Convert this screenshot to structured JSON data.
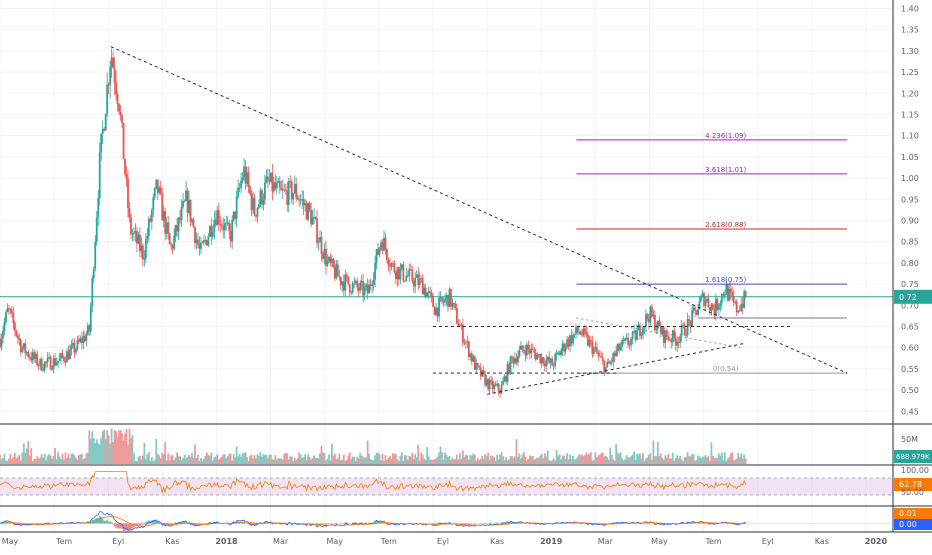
{
  "chart_data": {
    "type": "candlestick",
    "price_axis": {
      "ylim": [
        0.42,
        1.42
      ],
      "ticks": [
        "1.40",
        "1.35",
        "1.30",
        "1.25",
        "1.20",
        "1.15",
        "1.10",
        "1.05",
        "1.00",
        "0.95",
        "0.90",
        "0.85",
        "0.80",
        "0.75",
        "0.70",
        "0.65",
        "0.60",
        "0.55",
        "0.50",
        "0.45"
      ],
      "tick_values": [
        1.4,
        1.35,
        1.3,
        1.25,
        1.2,
        1.15,
        1.1,
        1.05,
        1.0,
        0.95,
        0.9,
        0.85,
        0.8,
        0.75,
        0.7,
        0.65,
        0.6,
        0.55,
        0.5,
        0.45
      ]
    },
    "time_axis": {
      "labels": [
        "May",
        "Tem",
        "Eyl",
        "Kas",
        "2018",
        "Mar",
        "May",
        "Tem",
        "Eyl",
        "Kas",
        "2019",
        "Mar",
        "May",
        "Tem",
        "Eyl",
        "Kas",
        "2020"
      ],
      "label_months": [
        0,
        2,
        4,
        6,
        8,
        10,
        12,
        14,
        16,
        18,
        20,
        22,
        24,
        26,
        28,
        30,
        32
      ],
      "xlim_months": [
        0,
        33
      ]
    },
    "last_price": {
      "label": "0.72",
      "value": 0.72,
      "color": "#26a69a"
    },
    "price_anchors": [
      [
        0,
        0.62
      ],
      [
        0.3,
        0.69
      ],
      [
        0.8,
        0.6
      ],
      [
        1.5,
        0.56
      ],
      [
        2.2,
        0.57
      ],
      [
        2.8,
        0.6
      ],
      [
        3.3,
        0.64
      ],
      [
        3.7,
        1.05
      ],
      [
        4.1,
        1.3
      ],
      [
        4.4,
        1.18
      ],
      [
        4.8,
        0.88
      ],
      [
        5.3,
        0.82
      ],
      [
        5.8,
        0.98
      ],
      [
        6.3,
        0.83
      ],
      [
        6.9,
        0.95
      ],
      [
        7.4,
        0.82
      ],
      [
        8.0,
        0.92
      ],
      [
        8.5,
        0.86
      ],
      [
        9.0,
        1.02
      ],
      [
        9.4,
        0.92
      ],
      [
        9.9,
        0.99
      ],
      [
        10.4,
        0.96
      ],
      [
        10.9,
        0.97
      ],
      [
        11.5,
        0.91
      ],
      [
        12.1,
        0.8
      ],
      [
        12.6,
        0.76
      ],
      [
        13.2,
        0.74
      ],
      [
        13.6,
        0.73
      ],
      [
        14.1,
        0.86
      ],
      [
        14.5,
        0.79
      ],
      [
        15.0,
        0.77
      ],
      [
        15.6,
        0.75
      ],
      [
        16.1,
        0.69
      ],
      [
        16.6,
        0.72
      ],
      [
        17.1,
        0.63
      ],
      [
        17.6,
        0.55
      ],
      [
        18.1,
        0.51
      ],
      [
        18.5,
        0.5
      ],
      [
        18.9,
        0.57
      ],
      [
        19.4,
        0.6
      ],
      [
        19.9,
        0.58
      ],
      [
        20.4,
        0.56
      ],
      [
        20.9,
        0.61
      ],
      [
        21.4,
        0.64
      ],
      [
        21.9,
        0.6
      ],
      [
        22.4,
        0.55
      ],
      [
        22.9,
        0.6
      ],
      [
        23.4,
        0.62
      ],
      [
        24.0,
        0.68
      ],
      [
        24.5,
        0.63
      ],
      [
        25.0,
        0.62
      ],
      [
        25.5,
        0.66
      ],
      [
        26.0,
        0.72
      ],
      [
        26.4,
        0.69
      ],
      [
        26.8,
        0.74
      ],
      [
        27.2,
        0.69
      ],
      [
        27.6,
        0.72
      ]
    ],
    "trendlines": [
      {
        "name": "downtrend",
        "from": [
          4.1,
          1.31
        ],
        "to": [
          31.3,
          0.54
        ],
        "style": "dashed",
        "color": "#2a2e39"
      },
      {
        "name": "support",
        "from": [
          18.0,
          0.49
        ],
        "to": [
          27.5,
          0.61
        ],
        "style": "dashed",
        "color": "#2a2e39"
      },
      {
        "name": "resistance-dashed",
        "from": [
          16.0,
          0.65
        ],
        "to": [
          29.2,
          0.65
        ],
        "style": "dashed",
        "color": "#2a2e39"
      },
      {
        "name": "support-dashed",
        "from": [
          16.0,
          0.54
        ],
        "to": [
          22.8,
          0.54
        ],
        "style": "dashed",
        "color": "#2a2e39"
      },
      {
        "name": "resistance-solid",
        "from": [
          25.8,
          0.67
        ],
        "to": [
          31.3,
          0.67
        ],
        "style": "solid",
        "color": "#787b86"
      },
      {
        "name": "channel-top",
        "from": [
          21.3,
          0.67
        ],
        "to": [
          27.4,
          0.6
        ],
        "style": "dotted",
        "color": "#9598a1"
      }
    ],
    "fib_levels": [
      {
        "label": "4.236(1.09)",
        "value": 1.09,
        "color": "#9c27b0"
      },
      {
        "label": "3.618(1.01)",
        "value": 1.01,
        "color": "#9c27b0"
      },
      {
        "label": "2.618(0.88)",
        "value": 0.88,
        "color": "#c62828"
      },
      {
        "label": "1.618(0.75)",
        "value": 0.75,
        "color": "#3f51b5"
      },
      {
        "label": "0(0.54)",
        "value": 0.54,
        "color": "#9598a1"
      }
    ],
    "fib_x_range": [
      21.3,
      31.3
    ],
    "volume": {
      "label": "688.979K",
      "axis_label": "50M",
      "spike_month": 4.1
    },
    "rsi": {
      "value_label": "62.78",
      "upper_label": "100.00",
      "lower_label": "50.00",
      "line_color": "#f57c00",
      "band_color": "#e1bee7"
    },
    "macd": {
      "label_1": "0.01",
      "label_2": "0.00",
      "label_1_color": "#f57c00",
      "label_2_color": "#2962ff"
    }
  }
}
